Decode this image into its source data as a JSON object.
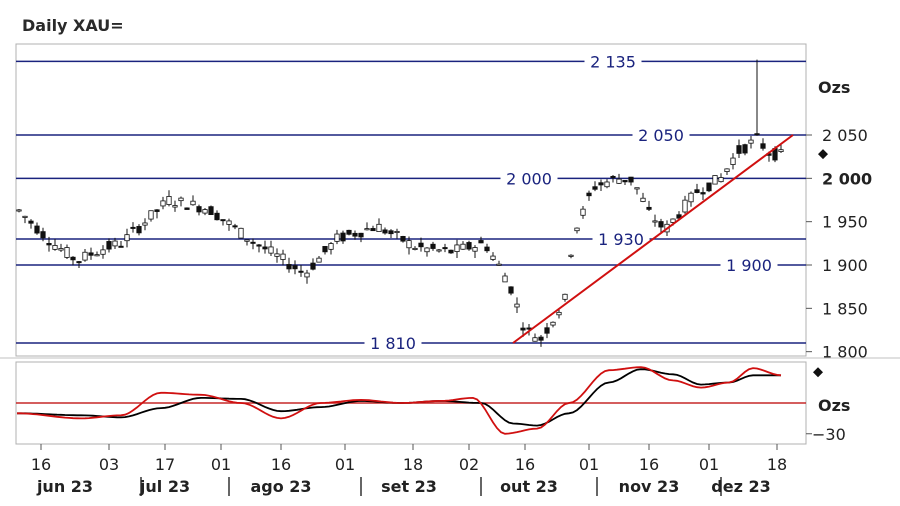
{
  "title": "Daily XAU=",
  "chart_data": [
    {
      "type": "candlestick",
      "unit_label": "Ozs",
      "ylim": [
        1795,
        2155
      ],
      "y_ticks": [
        {
          "value": 1800,
          "label": "1 800",
          "bold": false
        },
        {
          "value": 1850,
          "label": "1 850",
          "bold": false
        },
        {
          "value": 1900,
          "label": "1 900",
          "bold": false
        },
        {
          "value": 1950,
          "label": "1 950",
          "bold": false
        },
        {
          "value": 2000,
          "label": "2 000",
          "bold": true
        },
        {
          "value": 2050,
          "label": "2 050",
          "bold": false
        }
      ],
      "current_marker": 2028,
      "x_ticks": [
        "16",
        "03",
        "17",
        "01",
        "16",
        "01",
        "18",
        "02",
        "16",
        "01",
        "16",
        "01",
        "18"
      ],
      "x_tick_days": [
        0,
        17,
        31,
        45,
        60,
        76,
        93,
        107,
        121,
        137,
        152,
        167,
        184
      ],
      "months": [
        {
          "label": "jun 23",
          "day": 6
        },
        {
          "label": "jul 23",
          "day": 31
        },
        {
          "label": "ago 23",
          "day": 60
        },
        {
          "label": "set 23",
          "day": 92
        },
        {
          "label": "out 23",
          "day": 122
        },
        {
          "label": "nov 23",
          "day": 152
        },
        {
          "label": "dez 23",
          "day": 175
        }
      ],
      "levels": [
        {
          "value": 2135,
          "label": "2 135",
          "label_day": 143
        },
        {
          "value": 2050,
          "label": "2 050",
          "label_day": 155
        },
        {
          "value": 2000,
          "label": "2 000",
          "label_day": 122
        },
        {
          "value": 1930,
          "label": "1 930",
          "label_day": 145
        },
        {
          "value": 1900,
          "label": "1 900",
          "label_day": 177
        },
        {
          "value": 1810,
          "label": "1 810",
          "label_day": 88
        }
      ],
      "trendline": {
        "from": {
          "day": 118,
          "value": 1810
        },
        "to": {
          "day": 188,
          "value": 2050
        }
      },
      "price_path": [
        [
          -6,
          1965
        ],
        [
          3,
          1925
        ],
        [
          9,
          1905
        ],
        [
          15,
          1918
        ],
        [
          20,
          1925
        ],
        [
          32,
          1975
        ],
        [
          42,
          1965
        ],
        [
          52,
          1930
        ],
        [
          66,
          1890
        ],
        [
          74,
          1930
        ],
        [
          84,
          1945
        ],
        [
          94,
          1920
        ],
        [
          102,
          1915
        ],
        [
          111,
          1925
        ],
        [
          117,
          1880
        ],
        [
          121,
          1825
        ],
        [
          125,
          1815
        ],
        [
          131,
          1860
        ],
        [
          133,
          1935
        ],
        [
          136,
          1965
        ],
        [
          138,
          1990
        ],
        [
          144,
          2000
        ],
        [
          148,
          1998
        ],
        [
          152,
          1960
        ],
        [
          156,
          1940
        ],
        [
          164,
          1985
        ],
        [
          170,
          2000
        ],
        [
          174,
          2030
        ],
        [
          179,
          2045
        ],
        [
          182,
          2030
        ],
        [
          186,
          2025
        ]
      ]
    },
    {
      "type": "line",
      "unit_label": "Ozs",
      "ylim": [
        -40,
        40
      ],
      "y_ticks": [
        {
          "value": -30,
          "label": "−30"
        }
      ],
      "zero_line": 0,
      "current_marker": 30,
      "series": [
        {
          "color": "#000000",
          "points": [
            [
              -6,
              -10
            ],
            [
              10,
              -12
            ],
            [
              20,
              -14
            ],
            [
              30,
              -5
            ],
            [
              40,
              5
            ],
            [
              50,
              4
            ],
            [
              60,
              -8
            ],
            [
              70,
              -4
            ],
            [
              80,
              2
            ],
            [
              90,
              0
            ],
            [
              100,
              2
            ],
            [
              110,
              0
            ],
            [
              118,
              -20
            ],
            [
              124,
              -22
            ],
            [
              132,
              -10
            ],
            [
              142,
              20
            ],
            [
              150,
              33
            ],
            [
              158,
              28
            ],
            [
              165,
              18
            ],
            [
              172,
              20
            ],
            [
              178,
              27
            ],
            [
              185,
              27
            ]
          ]
        },
        {
          "color": "#d01010",
          "points": [
            [
              -6,
              -10
            ],
            [
              10,
              -15
            ],
            [
              20,
              -12
            ],
            [
              30,
              10
            ],
            [
              40,
              8
            ],
            [
              50,
              0
            ],
            [
              60,
              -15
            ],
            [
              70,
              0
            ],
            [
              80,
              3
            ],
            [
              90,
              0
            ],
            [
              100,
              2
            ],
            [
              108,
              5
            ],
            [
              116,
              -30
            ],
            [
              124,
              -25
            ],
            [
              132,
              0
            ],
            [
              142,
              32
            ],
            [
              150,
              35
            ],
            [
              158,
              22
            ],
            [
              165,
              15
            ],
            [
              172,
              20
            ],
            [
              178,
              34
            ],
            [
              185,
              27
            ]
          ]
        }
      ]
    }
  ]
}
